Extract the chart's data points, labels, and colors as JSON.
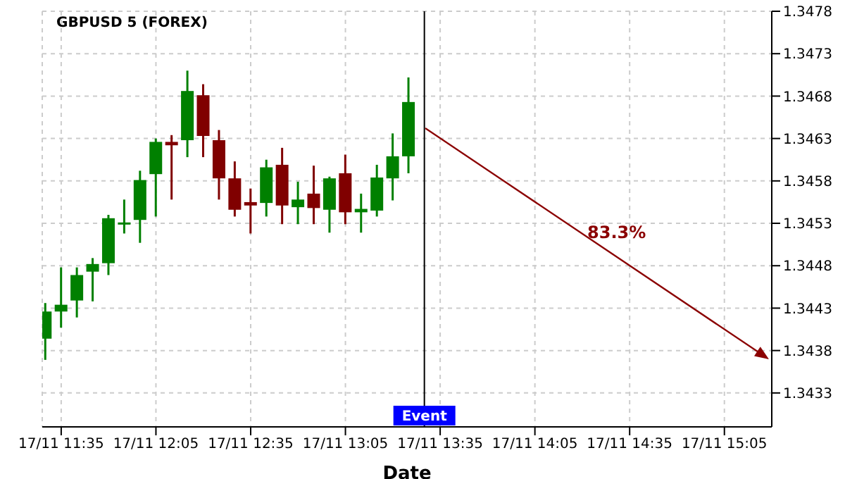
{
  "chart_data": {
    "type": "candlestick",
    "title": "GBPUSD 5 (FOREX)",
    "xlabel": "Date",
    "x": [
      "--11-17T11:30",
      "--11-17T11:35",
      "--11-17T11:40",
      "--11-17T11:45",
      "--11-17T11:50",
      "--11-17T11:55",
      "--11-17T12:00",
      "--11-17T12:05",
      "--11-17T12:10",
      "--11-17T12:15",
      "--11-17T12:20",
      "--11-17T12:25",
      "--11-17T12:30",
      "--11-17T12:35",
      "--11-17T12:40",
      "--11-17T12:45",
      "--11-17T12:50",
      "--11-17T12:55",
      "--11-17T13:00",
      "--11-17T13:05",
      "--11-17T13:10",
      "--11-17T13:15",
      "--11-17T13:20",
      "--11-17T13:25"
    ],
    "ohlc": [
      [
        1.34394,
        1.34436,
        1.34369,
        1.34426
      ],
      [
        1.34426,
        1.34478,
        1.34407,
        1.34434
      ],
      [
        1.34439,
        1.34478,
        1.34419,
        1.34469
      ],
      [
        1.34473,
        1.34489,
        1.34438,
        1.34482
      ],
      [
        1.34483,
        1.3454,
        1.34469,
        1.34536
      ],
      [
        1.34529,
        1.34558,
        1.34518,
        1.34531
      ],
      [
        1.34534,
        1.34592,
        1.34507,
        1.34581
      ],
      [
        1.34588,
        1.3463,
        1.34538,
        1.34626
      ],
      [
        1.34626,
        1.34634,
        1.34558,
        1.34622
      ],
      [
        1.34628,
        1.3471,
        1.34608,
        1.34686
      ],
      [
        1.34681,
        1.34694,
        1.34608,
        1.34633
      ],
      [
        1.34628,
        1.3464,
        1.34558,
        1.34583
      ],
      [
        1.34583,
        1.34603,
        1.34538,
        1.34546
      ],
      [
        1.34555,
        1.34571,
        1.34518,
        1.34551
      ],
      [
        1.34554,
        1.34605,
        1.34538,
        1.34596
      ],
      [
        1.34599,
        1.34619,
        1.34529,
        1.34551
      ],
      [
        1.34549,
        1.34579,
        1.34529,
        1.34558
      ],
      [
        1.34565,
        1.34598,
        1.34529,
        1.34548
      ],
      [
        1.34546,
        1.34585,
        1.34519,
        1.34583
      ],
      [
        1.34589,
        1.34611,
        1.34529,
        1.34543
      ],
      [
        1.34543,
        1.34565,
        1.34519,
        1.34547
      ],
      [
        1.34545,
        1.34599,
        1.34538,
        1.34584
      ],
      [
        1.34583,
        1.34636,
        1.34557,
        1.34609
      ],
      [
        1.34609,
        1.34702,
        1.34589,
        1.34673
      ]
    ],
    "colors": [
      "#008000",
      "#008000",
      "#008000",
      "#008000",
      "#008000",
      "#008000",
      "#008000",
      "#008000",
      "#800000",
      "#008000",
      "#800000",
      "#800000",
      "#800000",
      "#800000",
      "#008000",
      "#800000",
      "#008000",
      "#800000",
      "#008000",
      "#800000",
      "#008000",
      "#008000",
      "#008000",
      "#008000"
    ],
    "ref_lines": [
      {
        "axis": "x",
        "value": "--11-17T13:30",
        "label": "Event",
        "color": "#000000"
      }
    ],
    "annotations": [
      "83.3%"
    ],
    "xlim": [
      "--11-17T11:29",
      "--11-17T15:20"
    ],
    "ylim": [
      1.3429,
      1.3478
    ],
    "xticks": [
      {
        "value": "--11-17T11:35",
        "label": "17/11 11:35"
      },
      {
        "value": "--11-17T12:05",
        "label": "17/11 12:05"
      },
      {
        "value": "--11-17T12:35",
        "label": "17/11 12:35"
      },
      {
        "value": "--11-17T13:05",
        "label": "17/11 13:05"
      },
      {
        "value": "--11-17T13:35",
        "label": "17/11 13:35"
      },
      {
        "value": "--11-17T14:05",
        "label": "17/11 14:05"
      },
      {
        "value": "--11-17T14:35",
        "label": "17/11 14:35"
      },
      {
        "value": "--11-17T15:05",
        "label": "17/11 15:05"
      }
    ],
    "yticks": [
      1.3433,
      1.3438,
      1.3443,
      1.3448,
      1.3453,
      1.3458,
      1.3463,
      1.3468,
      1.3473,
      1.3478
    ],
    "grid": true
  }
}
